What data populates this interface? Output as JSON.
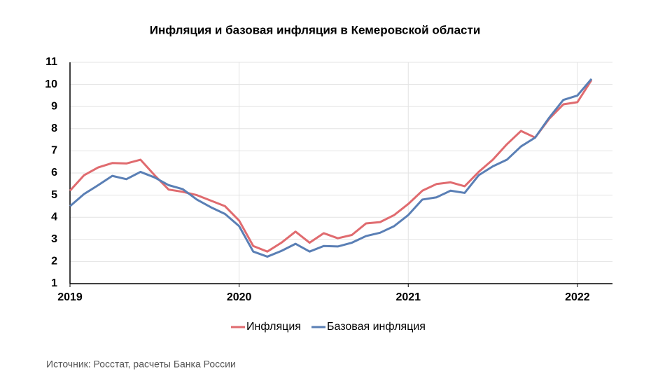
{
  "chart_data": {
    "type": "line",
    "title": "Инфляция и базовая инфляция в Кемеровской области",
    "categories": [
      "2019",
      null,
      null,
      null,
      null,
      null,
      null,
      null,
      null,
      null,
      null,
      null,
      "2020",
      null,
      null,
      null,
      null,
      null,
      null,
      null,
      null,
      null,
      null,
      null,
      "2021",
      null,
      null,
      null,
      null,
      null,
      null,
      null,
      null,
      null,
      null,
      null,
      "2022",
      null
    ],
    "series": [
      {
        "name": "Инфляция",
        "color": "#e06b6f",
        "values": [
          5.2,
          5.9,
          6.25,
          6.45,
          6.43,
          6.6,
          5.9,
          5.25,
          5.15,
          5.0,
          4.75,
          4.5,
          3.85,
          2.7,
          2.45,
          2.85,
          3.35,
          2.85,
          3.28,
          3.05,
          3.2,
          3.72,
          3.78,
          4.1,
          4.6,
          5.2,
          5.5,
          5.58,
          5.4,
          6.05,
          6.6,
          7.3,
          7.9,
          7.6,
          8.45,
          9.1,
          9.2,
          10.2
        ]
      },
      {
        "name": "Базовая инфляция",
        "color": "#5a7fb5",
        "values": [
          4.5,
          5.05,
          5.45,
          5.87,
          5.72,
          6.05,
          5.8,
          5.45,
          5.27,
          4.8,
          4.45,
          4.15,
          3.6,
          2.45,
          2.22,
          2.48,
          2.8,
          2.45,
          2.7,
          2.68,
          2.85,
          3.15,
          3.3,
          3.6,
          4.1,
          4.8,
          4.9,
          5.2,
          5.1,
          5.9,
          6.3,
          6.6,
          7.2,
          7.6,
          8.5,
          9.3,
          9.5,
          10.25
        ]
      }
    ],
    "ylim": [
      1,
      11
    ],
    "yticks": [
      1,
      2,
      3,
      4,
      5,
      6,
      7,
      8,
      9,
      10,
      11
    ],
    "grid": true,
    "legend": "bottom"
  },
  "source": "Источник: Росстат, расчеты Банка России"
}
